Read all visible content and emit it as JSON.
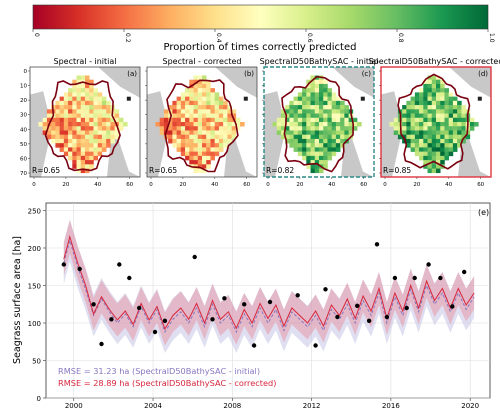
{
  "colorbar": {
    "label": "Proportion of times correctly predicted",
    "ticks": [
      "0",
      "0.2",
      "0.4",
      "0.6",
      "0.8",
      "1.0"
    ],
    "colors": [
      "#a50026",
      "#d73027",
      "#f46d43",
      "#fdae61",
      "#fee08b",
      "#ffffbf",
      "#d9ef8b",
      "#a6d96a",
      "#66bd63",
      "#1a9850",
      "#006837"
    ]
  },
  "panels": [
    {
      "title": "Spectral - initial",
      "letter": "(a)",
      "r": "R=0.65",
      "frame": "none"
    },
    {
      "title": "Spectral - corrected",
      "letter": "(b)",
      "r": "R=0.65",
      "frame": "none"
    },
    {
      "title": "SpectralD50BathySAC - initial",
      "letter": "(c)",
      "r": "R=0.82",
      "frame": "dashed-teal"
    },
    {
      "title": "SpectralD50BathySAC - corrected",
      "letter": "(d)",
      "r": "R=0.85",
      "frame": "solid-red"
    }
  ],
  "map_axes": {
    "y_ticks": [
      "0",
      "10",
      "20",
      "30",
      "40",
      "50",
      "60",
      "70"
    ],
    "x_ticks": [
      "0",
      "20",
      "40",
      "60"
    ]
  },
  "chart_data": {
    "type": "line",
    "panel_letter": "(e)",
    "ylabel": "Seagrass surface area [ha]",
    "xlabel": "",
    "x_ticks": [
      "2000",
      "2004",
      "2008",
      "2012",
      "2016",
      "2020"
    ],
    "y_ticks": [
      "0",
      "50",
      "100",
      "150",
      "200",
      "250"
    ],
    "xlim": [
      1998.6,
      2021.0
    ],
    "ylim": [
      0,
      260
    ],
    "grid": true,
    "series": [
      {
        "role": "initial",
        "color": "#8878c0",
        "style": "dashed",
        "values": [
          [
            1999.5,
            180
          ],
          [
            1999.8,
            210
          ],
          [
            2000.2,
            175
          ],
          [
            2000.6,
            145
          ],
          [
            2001.0,
            110
          ],
          [
            2001.4,
            132
          ],
          [
            2001.8,
            115
          ],
          [
            2002.2,
            100
          ],
          [
            2002.6,
            112
          ],
          [
            2003.0,
            95
          ],
          [
            2003.4,
            122
          ],
          [
            2003.8,
            100
          ],
          [
            2004.2,
            118
          ],
          [
            2004.6,
            88
          ],
          [
            2005.0,
            105
          ],
          [
            2005.4,
            115
          ],
          [
            2005.8,
            100
          ],
          [
            2006.2,
            120
          ],
          [
            2006.6,
            95
          ],
          [
            2007.0,
            125
          ],
          [
            2007.4,
            100
          ],
          [
            2007.8,
            110
          ],
          [
            2008.2,
            88
          ],
          [
            2008.6,
            112
          ],
          [
            2009.0,
            95
          ],
          [
            2009.4,
            120
          ],
          [
            2009.8,
            100
          ],
          [
            2010.2,
            118
          ],
          [
            2010.6,
            90
          ],
          [
            2011.0,
            115
          ],
          [
            2011.4,
            105
          ],
          [
            2011.8,
            95
          ],
          [
            2012.2,
            110
          ],
          [
            2012.6,
            90
          ],
          [
            2013.0,
            118
          ],
          [
            2013.4,
            105
          ],
          [
            2013.8,
            125
          ],
          [
            2014.2,
            100
          ],
          [
            2014.6,
            130
          ],
          [
            2015.0,
            110
          ],
          [
            2015.4,
            140
          ],
          [
            2015.8,
            100
          ],
          [
            2016.2,
            135
          ],
          [
            2016.6,
            110
          ],
          [
            2017.0,
            145
          ],
          [
            2017.4,
            115
          ],
          [
            2017.8,
            150
          ],
          [
            2018.2,
            125
          ],
          [
            2018.6,
            140
          ],
          [
            2019.0,
            115
          ],
          [
            2019.4,
            140
          ],
          [
            2019.8,
            118
          ],
          [
            2020.2,
            135
          ]
        ]
      },
      {
        "role": "corrected",
        "color": "#d7263d",
        "style": "solid",
        "values": [
          [
            1999.5,
            185
          ],
          [
            1999.8,
            215
          ],
          [
            2000.2,
            180
          ],
          [
            2000.6,
            150
          ],
          [
            2001.0,
            112
          ],
          [
            2001.4,
            135
          ],
          [
            2001.8,
            118
          ],
          [
            2002.2,
            104
          ],
          [
            2002.6,
            116
          ],
          [
            2003.0,
            98
          ],
          [
            2003.4,
            126
          ],
          [
            2003.8,
            104
          ],
          [
            2004.2,
            122
          ],
          [
            2004.6,
            92
          ],
          [
            2005.0,
            110
          ],
          [
            2005.4,
            120
          ],
          [
            2005.8,
            105
          ],
          [
            2006.2,
            126
          ],
          [
            2006.6,
            100
          ],
          [
            2007.0,
            130
          ],
          [
            2007.4,
            105
          ],
          [
            2007.8,
            115
          ],
          [
            2008.2,
            93
          ],
          [
            2008.6,
            118
          ],
          [
            2009.0,
            100
          ],
          [
            2009.4,
            126
          ],
          [
            2009.8,
            106
          ],
          [
            2010.2,
            124
          ],
          [
            2010.6,
            96
          ],
          [
            2011.0,
            120
          ],
          [
            2011.4,
            110
          ],
          [
            2011.8,
            100
          ],
          [
            2012.2,
            116
          ],
          [
            2012.6,
            96
          ],
          [
            2013.0,
            124
          ],
          [
            2013.4,
            110
          ],
          [
            2013.8,
            132
          ],
          [
            2014.2,
            106
          ],
          [
            2014.6,
            136
          ],
          [
            2015.0,
            116
          ],
          [
            2015.4,
            146
          ],
          [
            2015.8,
            106
          ],
          [
            2016.2,
            140
          ],
          [
            2016.6,
            116
          ],
          [
            2017.0,
            150
          ],
          [
            2017.4,
            120
          ],
          [
            2017.8,
            156
          ],
          [
            2018.2,
            130
          ],
          [
            2018.6,
            146
          ],
          [
            2019.0,
            120
          ],
          [
            2019.4,
            146
          ],
          [
            2019.8,
            124
          ],
          [
            2020.2,
            140
          ]
        ]
      }
    ],
    "observations": [
      [
        1999.5,
        178
      ],
      [
        2000.3,
        172
      ],
      [
        2001.0,
        125
      ],
      [
        2001.4,
        72
      ],
      [
        2001.9,
        105
      ],
      [
        2002.3,
        178
      ],
      [
        2002.8,
        160
      ],
      [
        2003.3,
        120
      ],
      [
        2004.1,
        88
      ],
      [
        2004.6,
        103
      ],
      [
        2006.1,
        188
      ],
      [
        2007.0,
        105
      ],
      [
        2007.6,
        133
      ],
      [
        2008.6,
        125
      ],
      [
        2009.1,
        70
      ],
      [
        2009.9,
        128
      ],
      [
        2011.3,
        137
      ],
      [
        2012.2,
        70
      ],
      [
        2012.7,
        145
      ],
      [
        2013.3,
        108
      ],
      [
        2014.3,
        123
      ],
      [
        2014.9,
        103
      ],
      [
        2015.3,
        205
      ],
      [
        2015.8,
        108
      ],
      [
        2016.2,
        160
      ],
      [
        2016.8,
        120
      ],
      [
        2017.2,
        160
      ],
      [
        2017.9,
        178
      ],
      [
        2018.5,
        160
      ],
      [
        2019.1,
        122
      ],
      [
        2019.7,
        168
      ]
    ],
    "legend": [
      {
        "text": "RMSE = 31.23 ha (SpectralD50BathySAC - initial)",
        "color": "#8878c0"
      },
      {
        "text": "RMSE = 28.89 ha (SpectralD50BathySAC - corrected)",
        "color": "#d7263d"
      }
    ]
  }
}
